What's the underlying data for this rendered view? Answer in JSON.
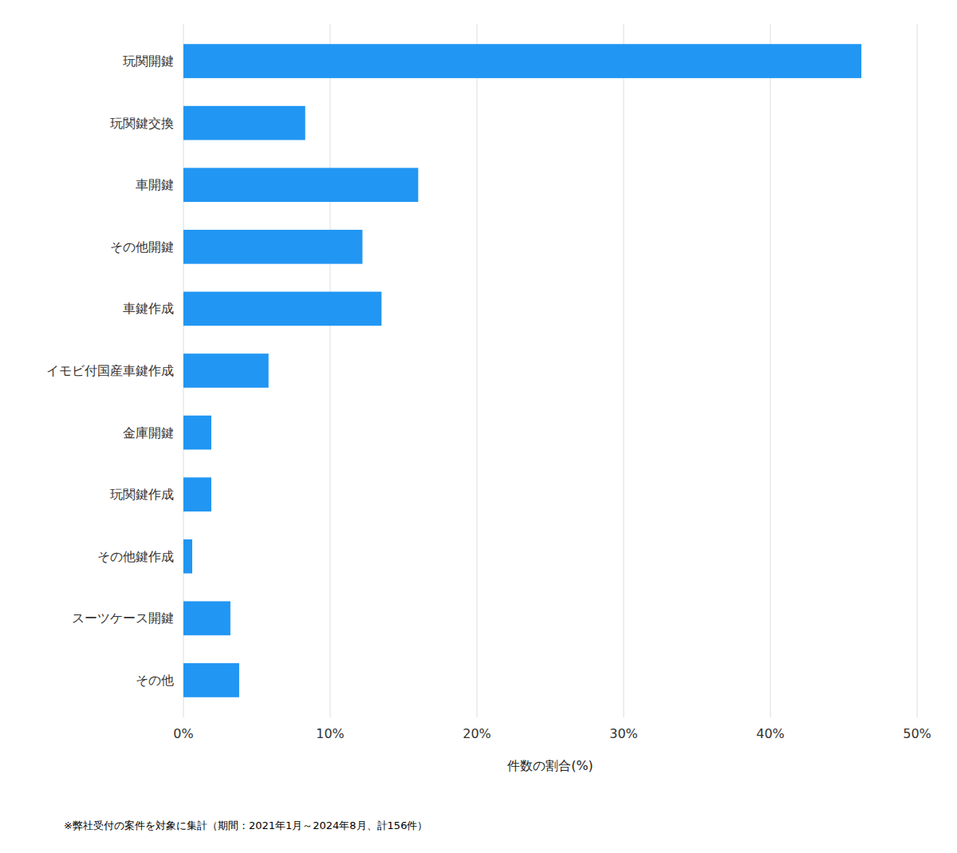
{
  "chart_data": {
    "type": "bar",
    "orientation": "horizontal",
    "categories": [
      "玩関開鍵",
      "玩関鍵交換",
      "車開鍵",
      "その他開鍵",
      "車鍵作成",
      "イモビ付国産車鍵作成",
      "金庫開鍵",
      "玩関鍵作成",
      "その他鍵作成",
      "スーツケース開鍵",
      "その他"
    ],
    "values": [
      46.2,
      8.3,
      16.0,
      12.2,
      13.5,
      5.8,
      1.9,
      1.9,
      0.6,
      3.2,
      3.8
    ],
    "color": "#2196F3",
    "xlabel": "件数の割合(%)",
    "xlim": [
      0,
      50
    ],
    "xticks": [
      {
        "value": 0,
        "label": "0%"
      },
      {
        "value": 10,
        "label": "10%"
      },
      {
        "value": 20,
        "label": "20%"
      },
      {
        "value": 30,
        "label": "30%"
      },
      {
        "value": 40,
        "label": "40%"
      },
      {
        "value": 50,
        "label": "50%"
      }
    ],
    "grid": true,
    "footnote": "※弊社受付の案件を対象に集計（期間：2021年1月～2024年8月、計156件）"
  }
}
